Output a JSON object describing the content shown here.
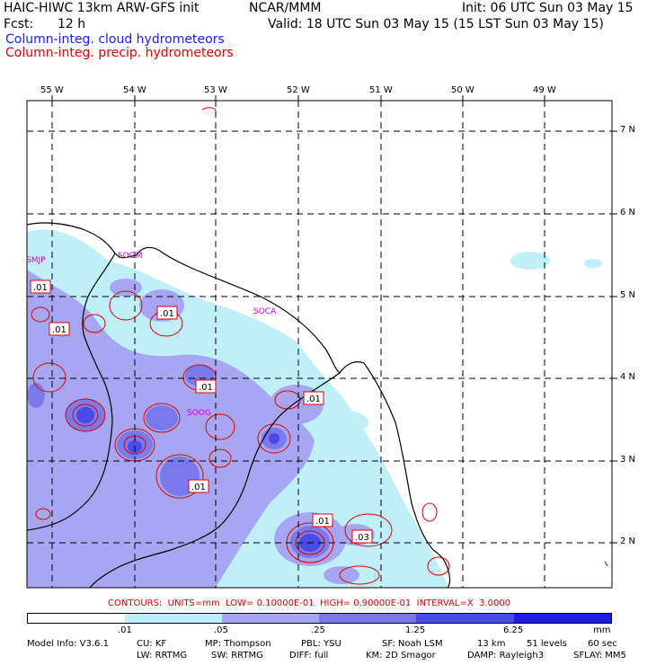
{
  "header": {
    "title_left": "HAIC-HIWC 13km ARW-GFS init",
    "center": "NCAR/MMM",
    "init": "Init: 06 UTC Sun 03 May 15",
    "fcst_label": "Fcst:",
    "fcst_value": "12 h",
    "valid": "Valid: 18 UTC Sun 03 May 15 (15 LST Sun 03 May 15)",
    "field1": "Column-integ. cloud hydrometeors",
    "field2": "Column-integ. precip. hydrometeors"
  },
  "axes": {
    "lon_labels": [
      "55 W",
      "54 W",
      "53 W",
      "52 W",
      "51 W",
      "50 W",
      "49 W"
    ],
    "lat_labels": [
      "7 N",
      "6 N",
      "5 N",
      "4 N",
      "3 N",
      "2 N"
    ]
  },
  "stations": [
    "SMJP",
    "SOGM",
    "SOCA",
    "SOOG"
  ],
  "contour_labels": [
    ".01",
    ".01",
    ".01",
    ".01",
    ".01",
    ".01",
    ".01",
    ".03"
  ],
  "contours_line": "CONTOURS:  UNITS=mm  LOW= 0.10000E-01  HIGH= 0.90000E-01  INTERVAL=X  3.0000",
  "colorbar": {
    "ticks": [
      ".01",
      ".05",
      ".25",
      "1.25",
      "6.25"
    ],
    "units": "mm",
    "colors": [
      "#ffffff",
      "#bff0fa",
      "#a6a6f2",
      "#7a7aee",
      "#4a4ae8",
      "#1c1ce0"
    ]
  },
  "model_info": {
    "line1": [
      "Model Info: V3.6.1",
      "CU: KF",
      "MP: Thompson",
      "PBL: YSU",
      "SF: Noah LSM",
      "13 km",
      "51 levels",
      "60 sec"
    ],
    "line2": [
      "LW: RRTMG",
      "SW: RRTMG",
      "DIFF: full",
      "KM: 2D Smagor",
      "DAMP: Rayleigh3",
      "SFLAY: MM5"
    ]
  },
  "colors": {
    "cloud_light": "#bff0fa",
    "cloud_med": "#a6a6f2",
    "cloud_dark": "#7a7aee",
    "cloud_darker": "#4a4ae8",
    "precip": "#e00000",
    "station": "#cc00cc"
  }
}
